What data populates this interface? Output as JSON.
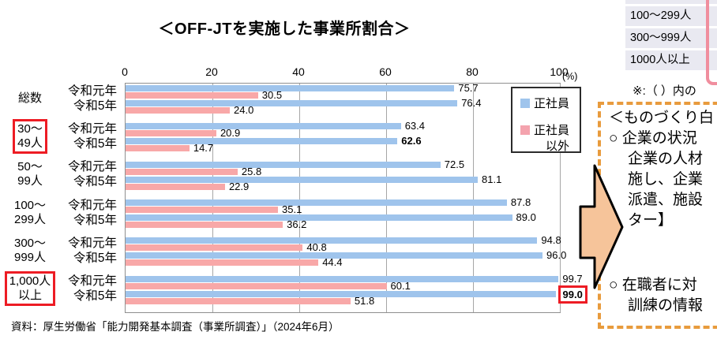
{
  "chart": {
    "title": "＜OFF-JTを実施した事業所割合＞",
    "percent_label": "(%)",
    "source": "資料：厚生労働省「能力開発基本調査（事業所調査）」（2024年6月）"
  },
  "legend": {
    "items": [
      {
        "label_lines": [
          "正社員"
        ],
        "color": "#9fc4ec"
      },
      {
        "label_lines": [
          "正社員",
          "以外"
        ],
        "color": "#f4a3ae"
      }
    ]
  },
  "chart_data": {
    "type": "bar",
    "orientation": "horizontal",
    "title": "＜OFF-JTを実施した事業所割合＞",
    "unit": "%",
    "xlim": [
      0,
      100
    ],
    "x_ticks": [
      0,
      20,
      40,
      60,
      80,
      100
    ],
    "gridlines": true,
    "legend_position": "top-right-inside",
    "series": [
      "正社員",
      "正社員以外"
    ],
    "colors": {
      "regular": "#9fc4ec",
      "other": "#f8a8a8"
    },
    "groups": [
      {
        "category_lines": [
          "総数"
        ],
        "highlighted": false,
        "rows": [
          {
            "year": "令和元年",
            "regular": 75.7,
            "other": 30.5
          },
          {
            "year": "令和5年",
            "regular": 76.4,
            "other": 24.0
          }
        ]
      },
      {
        "category_lines": [
          "30〜",
          "49人"
        ],
        "highlighted": true,
        "rows": [
          {
            "year": "令和元年",
            "regular": 63.4,
            "other": 20.9
          },
          {
            "year": "令和5年",
            "regular": 62.6,
            "other": 14.7,
            "regular_emphasis": "bold"
          }
        ]
      },
      {
        "category_lines": [
          "50〜",
          "99人"
        ],
        "highlighted": false,
        "rows": [
          {
            "year": "令和元年",
            "regular": 72.5,
            "other": 25.8
          },
          {
            "year": "令和5年",
            "regular": 81.1,
            "other": 22.9
          }
        ]
      },
      {
        "category_lines": [
          "100〜",
          "299人"
        ],
        "highlighted": false,
        "rows": [
          {
            "year": "令和元年",
            "regular": 87.8,
            "other": 35.1
          },
          {
            "year": "令和5年",
            "regular": 89.0,
            "other": 36.2
          }
        ]
      },
      {
        "category_lines": [
          "300〜",
          "999人"
        ],
        "highlighted": false,
        "rows": [
          {
            "year": "令和元年",
            "regular": 94.8,
            "other": 40.8
          },
          {
            "year": "令和5年",
            "regular": 96.0,
            "other": 44.4
          }
        ]
      },
      {
        "category_lines": [
          "1,000人",
          "以上"
        ],
        "highlighted": true,
        "rows": [
          {
            "year": "令和元年",
            "regular": 99.7,
            "other": 60.1
          },
          {
            "year": "令和5年",
            "regular": 99.0,
            "other": 51.8,
            "regular_emphasis": "boxed"
          }
        ]
      }
    ]
  },
  "side_table": {
    "rows": [
      "100〜299人",
      "300〜999人",
      "1000人以上"
    ],
    "note": "※:（ ）内の"
  },
  "callout": {
    "lines": [
      {
        "text": "＜ものづくり白",
        "indent": 0
      },
      {
        "text": "○ 企業の状況",
        "indent": 0
      },
      {
        "text": "企業の人材",
        "indent": 1
      },
      {
        "text": "施し、企業",
        "indent": 1
      },
      {
        "text": "派遣、施設",
        "indent": 1
      },
      {
        "text": "ター】",
        "indent": 1
      },
      {
        "text": "",
        "indent": 0,
        "spacer": true
      },
      {
        "text": "○ 在職者に対",
        "indent": 0
      },
      {
        "text": "訓練の情報",
        "indent": 1
      }
    ]
  },
  "shapes": {
    "arrow_fill": "#f6c49a",
    "arrow_stroke": "#000000",
    "highlight_red": "#ed1c24",
    "dash_orange": "#e89b3d",
    "table_pink": "#f08e9e"
  }
}
